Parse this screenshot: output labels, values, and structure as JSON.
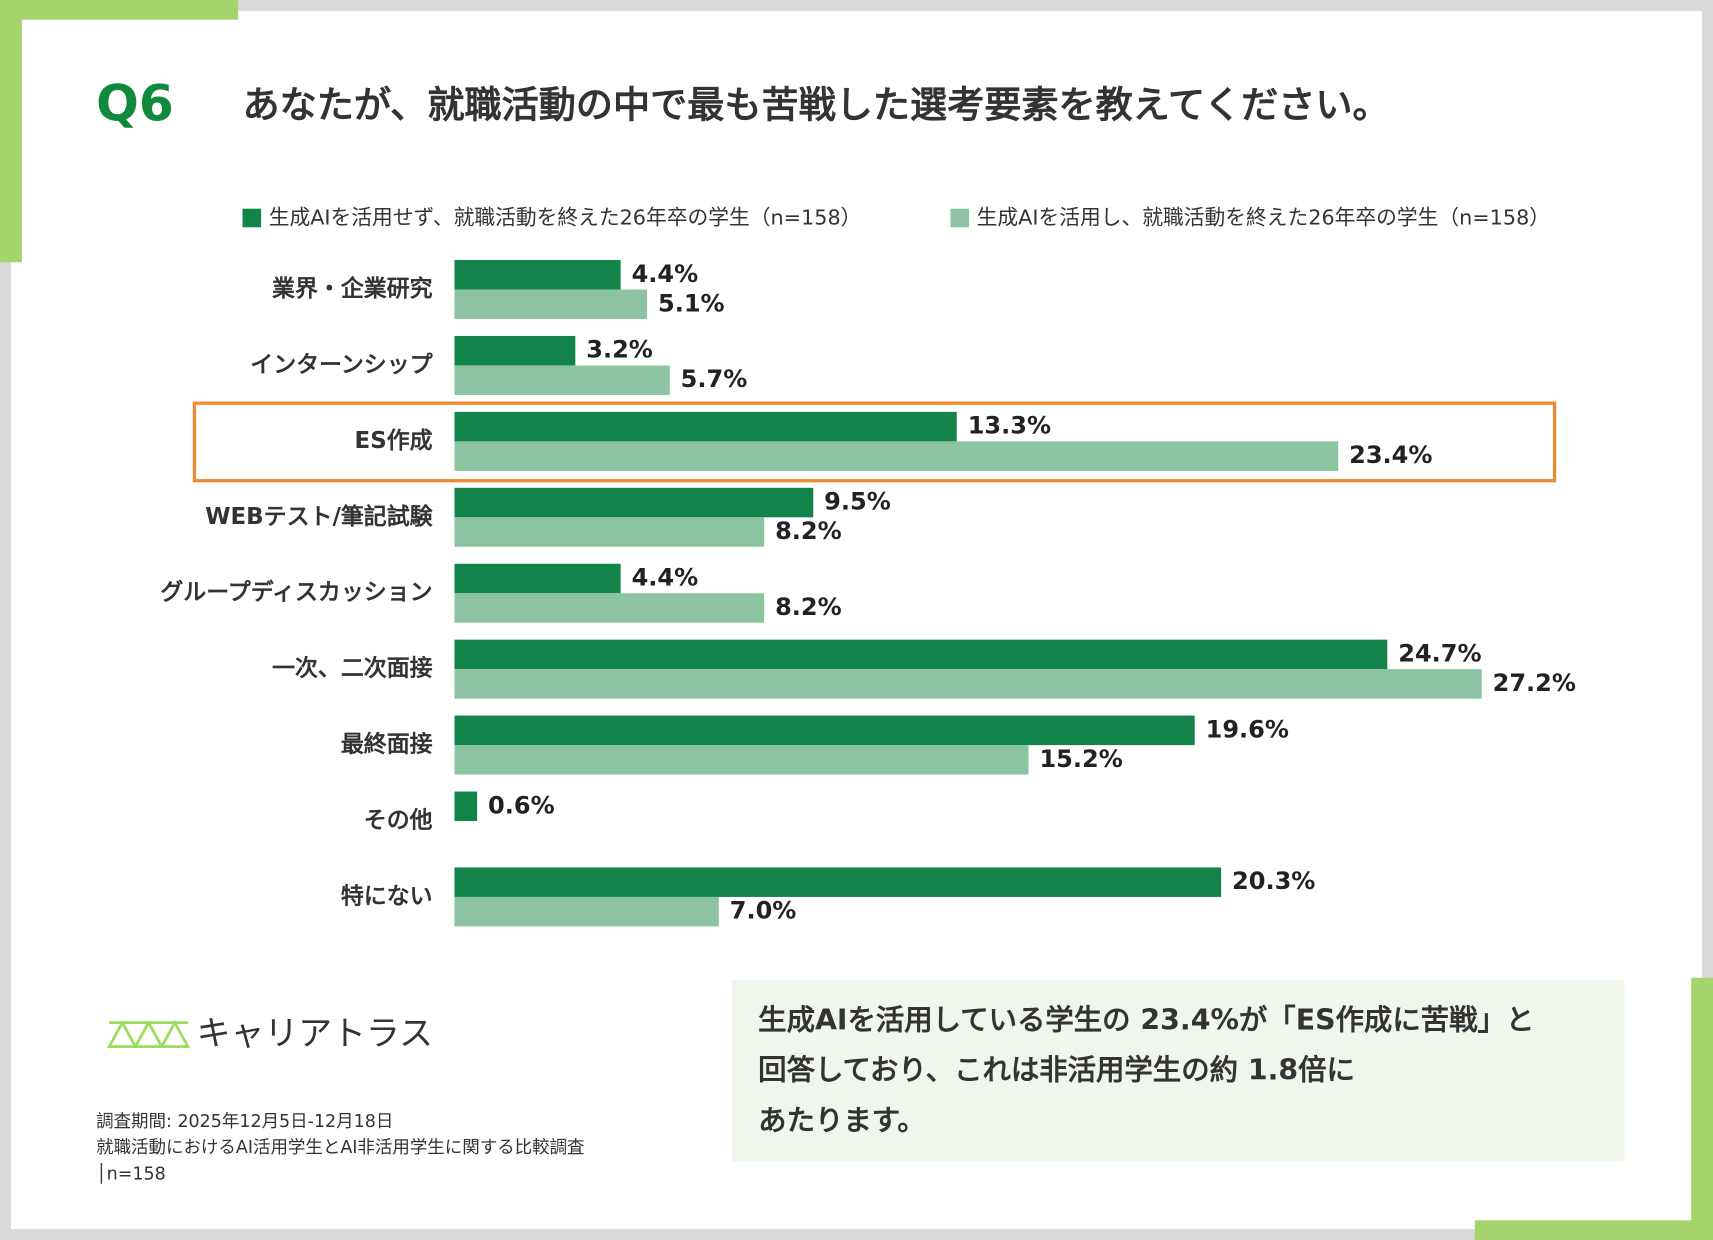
{
  "header": {
    "number": "Q6",
    "title": "あなたが、就職活動の中で最も苦戦した選考要素を教えてください。"
  },
  "chart_data": {
    "type": "hbar",
    "categories": [
      "業界・企業研究",
      "インターンシップ",
      "ES作成",
      "WEBテスト/筆記試験",
      "グループディスカッション",
      "一次、二次面接",
      "最終面接",
      "その他",
      "特にない"
    ],
    "series": [
      {
        "name": "生成AIを活用せず、就職活動を終えた26年卒の学生（n=158）",
        "color": "#12844a",
        "values": [
          4.4,
          3.2,
          13.3,
          9.5,
          4.4,
          24.7,
          19.6,
          0.6,
          20.3
        ],
        "value_labels": [
          "4.4%",
          "3.2%",
          "13.3%",
          "9.5%",
          "4.4%",
          "24.7%",
          "19.6%",
          "0.6%",
          "20.3%"
        ]
      },
      {
        "name": "生成AIを活用し、就職活動を終えた26年卒の学生（n=158）",
        "color": "#8cc4a1",
        "values": [
          5.1,
          5.7,
          23.4,
          8.2,
          8.2,
          27.2,
          15.2,
          null,
          7.0
        ],
        "value_labels": [
          "5.1%",
          "5.7%",
          "23.4%",
          "8.2%",
          "8.2%",
          "27.2%",
          "15.2%",
          null,
          "7.0%"
        ]
      }
    ],
    "xlim": [
      0,
      30
    ]
  },
  "logo": {
    "text": "キャリアトラス"
  },
  "footnote": {
    "lines": [
      "調査期間: 2025年12月5日-12月18日",
      "就職活動におけるAI活用学生とAI非活用学生に関する比較調査",
      "│n=158"
    ]
  },
  "callout": {
    "lines": [
      "生成AIを活用している学生の 23.4%が「ES作成に苦戦」と",
      "回答しており、これは非活用学生の約 1.8倍に",
      "あたります。"
    ]
  }
}
